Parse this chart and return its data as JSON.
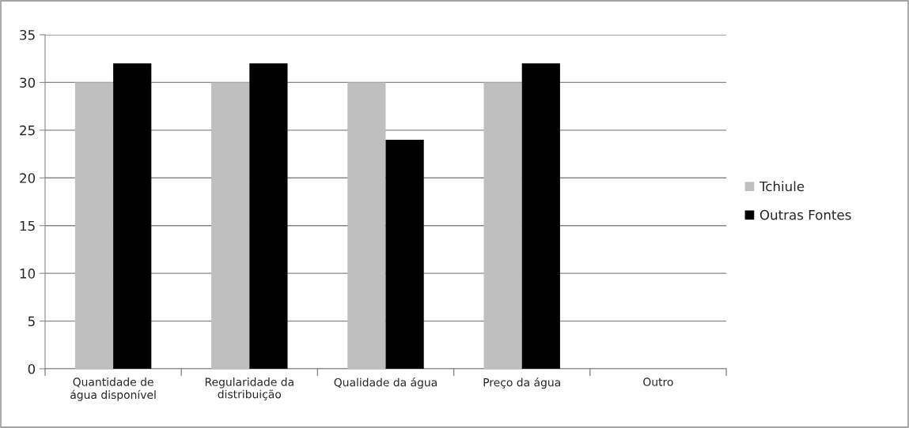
{
  "chart_data": {
    "type": "bar",
    "categories": [
      "Quantidade de\nágua disponível",
      "Regularidade da\ndistribuição",
      "Qualidade da água",
      "Preço da água",
      "Outro"
    ],
    "series": [
      {
        "name": "Tchiule",
        "color": "#bfbfbf",
        "values": [
          30,
          30,
          30,
          30,
          null
        ]
      },
      {
        "name": "Outras Fontes",
        "color": "#000000",
        "values": [
          32,
          32,
          24,
          32,
          null
        ]
      }
    ],
    "ylim": [
      0,
      35
    ],
    "yticks": [
      0,
      5,
      10,
      15,
      20,
      25,
      30,
      35
    ],
    "grid": "y",
    "legend": "right"
  }
}
